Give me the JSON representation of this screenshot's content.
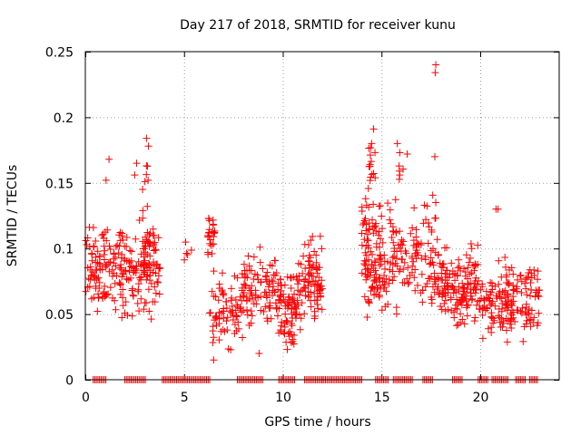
{
  "chart_data": {
    "type": "scatter",
    "title": "Day 217 of 2018, SRMTID for receiver kunu",
    "xlabel": "GPS time / hours",
    "ylabel": "SRMTID / TECUs",
    "xlim": [
      0,
      24
    ],
    "ylim": [
      0,
      0.25
    ],
    "xticks": [
      0,
      5,
      10,
      15,
      20
    ],
    "yticks": [
      0,
      0.05,
      0.1,
      0.15,
      0.2,
      0.25
    ],
    "xtick_labels": [
      "0",
      "5",
      "10",
      "15",
      "20"
    ],
    "ytick_labels": [
      "0",
      "0.05",
      "0.1",
      "0.15",
      "0.2",
      "0.25"
    ],
    "grid": true,
    "marker": "+",
    "color": "#ff0000",
    "seed": 217,
    "baseline_ranges": [
      [
        0.4,
        1.1
      ],
      [
        2.0,
        3.1
      ],
      [
        3.9,
        6.3
      ],
      [
        7.7,
        9.0
      ],
      [
        9.8,
        10.6
      ],
      [
        11.1,
        12.0
      ],
      [
        12.0,
        14.0
      ],
      [
        14.7,
        15.4
      ],
      [
        15.6,
        16.6
      ],
      [
        17.1,
        17.6
      ],
      [
        18.6,
        19.1
      ],
      [
        19.9,
        20.4
      ],
      [
        20.6,
        21.4
      ],
      [
        21.8,
        22.3
      ],
      [
        22.5,
        22.9
      ]
    ],
    "clusters": [
      {
        "x": [
          0.0,
          3.8
        ],
        "y": [
          0.04,
          0.13
        ],
        "n": 230
      },
      {
        "x": [
          2.9,
          3.3
        ],
        "y": [
          0.03,
          0.18
        ],
        "n": 30
      },
      {
        "x": [
          5.0,
          5.5
        ],
        "y": [
          0.075,
          0.12
        ],
        "n": 5
      },
      {
        "x": [
          6.2,
          6.6
        ],
        "y": [
          0.08,
          0.135
        ],
        "n": 25
      },
      {
        "x": [
          6.3,
          8.0
        ],
        "y": [
          0.015,
          0.09
        ],
        "n": 80
      },
      {
        "x": [
          8.0,
          9.7
        ],
        "y": [
          0.03,
          0.11
        ],
        "n": 90
      },
      {
        "x": [
          9.7,
          10.8
        ],
        "y": [
          0.03,
          0.09
        ],
        "n": 70
      },
      {
        "x": [
          10.0,
          10.6
        ],
        "y": [
          0.02,
          0.05
        ],
        "n": 15
      },
      {
        "x": [
          10.8,
          12.0
        ],
        "y": [
          0.03,
          0.12
        ],
        "n": 90
      },
      {
        "x": [
          14.0,
          15.0
        ],
        "y": [
          0.03,
          0.15
        ],
        "n": 100
      },
      {
        "x": [
          14.3,
          14.7
        ],
        "y": [
          0.14,
          0.19
        ],
        "n": 14
      },
      {
        "x": [
          15.0,
          18.0
        ],
        "y": [
          0.03,
          0.15
        ],
        "n": 150
      },
      {
        "x": [
          15.5,
          16.3
        ],
        "y": [
          0.14,
          0.18
        ],
        "n": 6
      },
      {
        "x": [
          18.0,
          20.0
        ],
        "y": [
          0.03,
          0.11
        ],
        "n": 140
      },
      {
        "x": [
          20.0,
          23.0
        ],
        "y": [
          0.02,
          0.1
        ],
        "n": 170
      }
    ],
    "outliers": [
      [
        17.75,
        0.24
      ],
      [
        17.72,
        0.234
      ],
      [
        17.7,
        0.17
      ],
      [
        17.75,
        0.135
      ],
      [
        1.2,
        0.168
      ],
      [
        1.05,
        0.152
      ],
      [
        2.5,
        0.156
      ],
      [
        2.6,
        0.165
      ],
      [
        3.1,
        0.184
      ],
      [
        3.2,
        0.178
      ],
      [
        3.1,
        0.163
      ],
      [
        2.9,
        0.145
      ],
      [
        14.6,
        0.191
      ],
      [
        14.5,
        0.18
      ],
      [
        15.8,
        0.18
      ],
      [
        16.3,
        0.172
      ],
      [
        20.8,
        0.13
      ],
      [
        20.9,
        0.13
      ],
      [
        8.8,
        0.02
      ],
      [
        6.5,
        0.015
      ]
    ]
  }
}
